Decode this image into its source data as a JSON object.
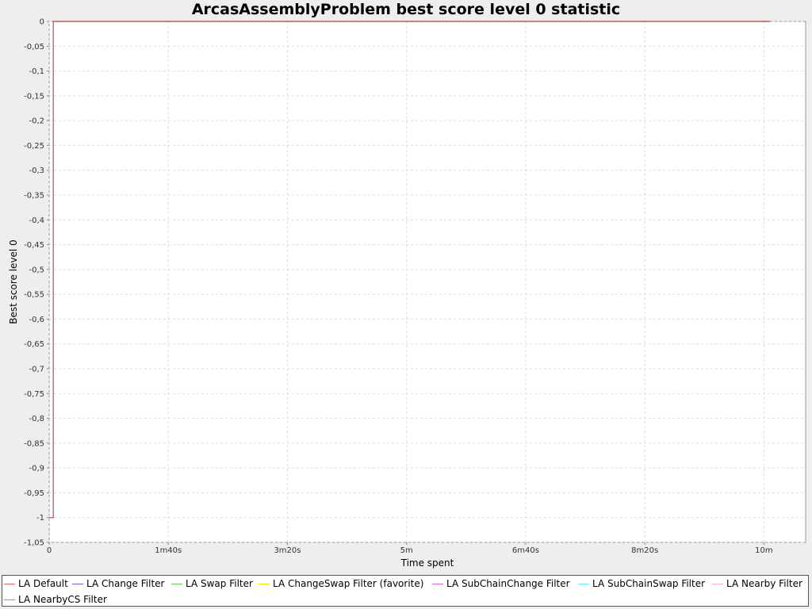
{
  "chart_data": {
    "type": "line",
    "title": "ArcasAssemblyProblem best score level 0 statistic",
    "xlabel": "Time spent",
    "ylabel": "Best score level 0",
    "xlim_seconds": [
      0,
      635
    ],
    "ylim": [
      -1.05,
      0
    ],
    "grid": true,
    "legend_position": "bottom",
    "x_ticks": [
      {
        "value": 0,
        "label": "0"
      },
      {
        "value": 100,
        "label": "1m40s"
      },
      {
        "value": 200,
        "label": "3m20s"
      },
      {
        "value": 300,
        "label": "5m"
      },
      {
        "value": 400,
        "label": "6m40s"
      },
      {
        "value": 500,
        "label": "8m20s"
      },
      {
        "value": 600,
        "label": "10m"
      }
    ],
    "y_ticks": [
      {
        "value": 0,
        "label": "0"
      },
      {
        "value": -0.05,
        "label": "-0,05"
      },
      {
        "value": -0.1,
        "label": "-0,1"
      },
      {
        "value": -0.15,
        "label": "-0,15"
      },
      {
        "value": -0.2,
        "label": "-0,2"
      },
      {
        "value": -0.25,
        "label": "-0,25"
      },
      {
        "value": -0.3,
        "label": "-0,3"
      },
      {
        "value": -0.35,
        "label": "-0,35"
      },
      {
        "value": -0.4,
        "label": "-0,4"
      },
      {
        "value": -0.45,
        "label": "-0,45"
      },
      {
        "value": -0.5,
        "label": "-0,5"
      },
      {
        "value": -0.55,
        "label": "-0,55"
      },
      {
        "value": -0.6,
        "label": "-0,6"
      },
      {
        "value": -0.65,
        "label": "-0,65"
      },
      {
        "value": -0.7,
        "label": "-0,7"
      },
      {
        "value": -0.75,
        "label": "-0,75"
      },
      {
        "value": -0.8,
        "label": "-0,8"
      },
      {
        "value": -0.85,
        "label": "-0,85"
      },
      {
        "value": -0.9,
        "label": "-0,9"
      },
      {
        "value": -0.95,
        "label": "-0,95"
      },
      {
        "value": -1,
        "label": "-1"
      },
      {
        "value": -1.05,
        "label": "-1,05"
      }
    ],
    "series": [
      {
        "name": "LA Default",
        "color": "#e06666",
        "steps": [
          [
            0,
            -1
          ],
          [
            3.5,
            -1
          ],
          [
            3.5,
            0
          ],
          [
            605,
            0
          ]
        ]
      },
      {
        "name": "LA Change Filter",
        "color": "#6666cc",
        "steps": [
          [
            0,
            -1
          ],
          [
            3.5,
            -1
          ],
          [
            3.5,
            0
          ],
          [
            605,
            0
          ]
        ]
      },
      {
        "name": "LA Swap Filter",
        "color": "#66cc66",
        "steps": [
          [
            0,
            -1
          ],
          [
            3.5,
            -1
          ],
          [
            3.5,
            0
          ],
          [
            605,
            0
          ]
        ]
      },
      {
        "name": "LA ChangeSwap Filter (favorite)",
        "color": "#e8e800",
        "steps": [
          [
            0,
            -1
          ],
          [
            3.5,
            -1
          ],
          [
            3.5,
            0
          ],
          [
            605,
            0
          ]
        ]
      },
      {
        "name": "LA SubChainChange Filter",
        "color": "#dd66dd",
        "steps": [
          [
            0,
            -1
          ],
          [
            3.5,
            -1
          ],
          [
            3.5,
            0
          ],
          [
            605,
            0
          ]
        ]
      },
      {
        "name": "LA SubChainSwap Filter",
        "color": "#66eeee",
        "steps": [
          [
            0,
            -1
          ],
          [
            3.5,
            -1
          ],
          [
            3.5,
            0
          ],
          [
            605,
            0
          ]
        ]
      },
      {
        "name": "LA Nearby Filter",
        "color": "#ffb6c1",
        "steps": [
          [
            0,
            -1
          ],
          [
            3.5,
            -1
          ],
          [
            3.5,
            0
          ],
          [
            605,
            0
          ]
        ]
      },
      {
        "name": "LA NearbyCS Filter",
        "color": "#999999",
        "steps": [
          [
            0,
            -1
          ],
          [
            3.5,
            -1
          ],
          [
            3.5,
            0
          ],
          [
            605,
            0
          ]
        ]
      }
    ]
  }
}
